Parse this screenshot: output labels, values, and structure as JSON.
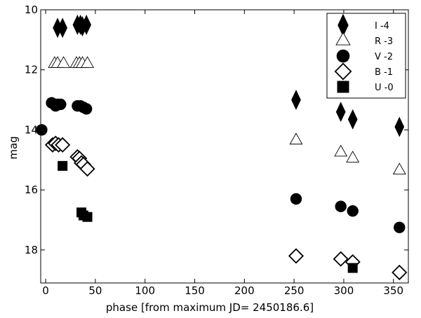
{
  "chart_data": {
    "type": "scatter",
    "title": "",
    "xlabel": "phase [from maximum JD= 2450186.6]",
    "ylabel": "mag",
    "xlim": [
      -5,
      365
    ],
    "ylim": [
      19.1,
      10
    ],
    "y_inverted": true,
    "grid": false,
    "legend_position": "top-right",
    "x_ticks": [
      0,
      50,
      100,
      150,
      200,
      250,
      300,
      350
    ],
    "y_ticks": [
      10,
      12,
      14,
      16,
      18
    ],
    "series": [
      {
        "name": "I  -4",
        "marker": "diamond-filled",
        "x": [
          12,
          17,
          32,
          35,
          37,
          41,
          252,
          297,
          309,
          356
        ],
        "y": [
          10.6,
          10.6,
          10.5,
          10.5,
          10.55,
          10.5,
          13.0,
          13.4,
          13.65,
          13.9
        ]
      },
      {
        "name": "R -3",
        "marker": "triangle-open",
        "x": [
          9,
          12,
          18,
          31,
          34,
          37,
          42,
          252,
          297,
          309,
          356
        ],
        "y": [
          11.8,
          11.8,
          11.8,
          11.8,
          11.8,
          11.8,
          11.8,
          14.35,
          14.75,
          14.95,
          15.35
        ]
      },
      {
        "name": "V -2",
        "marker": "circle-filled",
        "x": [
          -4,
          6,
          10,
          12,
          15,
          32,
          35,
          38,
          41,
          252,
          297,
          309,
          356
        ],
        "y": [
          14.0,
          13.1,
          13.2,
          13.15,
          13.15,
          13.2,
          13.2,
          13.25,
          13.3,
          16.3,
          16.55,
          16.7,
          17.25
        ]
      },
      {
        "name": "B -1",
        "marker": "diamond-open",
        "x": [
          7,
          10,
          13,
          17,
          32,
          34,
          36,
          38,
          42,
          252,
          297,
          309,
          356
        ],
        "y": [
          14.5,
          14.45,
          14.5,
          14.5,
          14.9,
          14.95,
          15.1,
          15.15,
          15.3,
          18.2,
          18.3,
          18.4,
          18.75
        ]
      },
      {
        "name": "U -0",
        "marker": "square-filled",
        "x": [
          17,
          36,
          38,
          42,
          309
        ],
        "y": [
          15.2,
          16.75,
          16.85,
          16.9,
          18.6
        ]
      }
    ]
  }
}
